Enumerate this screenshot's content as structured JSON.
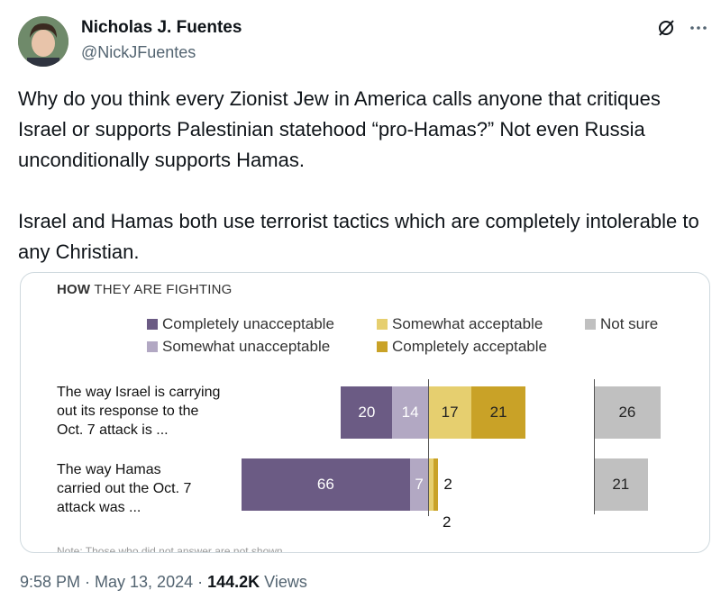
{
  "author": {
    "name": "Nicholas J. Fuentes",
    "handle": "@NickJFuentes"
  },
  "icons": {
    "grok": "slash-circle-icon",
    "more": "more-options-icon"
  },
  "tweet": {
    "paragraph1": "Why do you think every Zionist Jew in America calls anyone that critiques Israel or supports Palestinian statehood “pro-Hamas?” Not even Russia unconditionally supports Hamas.",
    "paragraph2": "Israel and Hamas both use terrorist tactics which are completely intolerable to any Christian."
  },
  "chart_data": {
    "type": "bar",
    "title_bold": "HOW",
    "title_rest": " THEY ARE FIGHTING",
    "legend": [
      {
        "label": "Completely unacceptable",
        "color": "#6b5b84"
      },
      {
        "label": "Somewhat unacceptable",
        "color": "#b2a8c3"
      },
      {
        "label": "Somewhat acceptable",
        "color": "#e6cf6f"
      },
      {
        "label": "Completely acceptable",
        "color": "#c9a227"
      },
      {
        "label": "Not sure",
        "color": "#c0c0c0"
      }
    ],
    "categories": [
      "The way Israel is carrying out its response to the Oct. 7 attack is ...",
      "The way Hamas carried out the Oct. 7 attack was ..."
    ],
    "rows": [
      {
        "label_lines": [
          "The way Israel is carrying",
          "out its response to the",
          "Oct. 7 attack is ..."
        ],
        "completely_unacceptable": 20,
        "somewhat_unacceptable": 14,
        "somewhat_acceptable": 17,
        "completely_acceptable": 21,
        "not_sure": 26,
        "labels": {
          "cu": "20",
          "su": "14",
          "sa": "17",
          "ca": "21",
          "ns": "26"
        }
      },
      {
        "label_lines": [
          "The way Hamas",
          "carried out the Oct. 7",
          "attack was ..."
        ],
        "completely_unacceptable": 66,
        "somewhat_unacceptable": 7,
        "somewhat_acceptable": 2,
        "completely_acceptable": 2,
        "not_sure": 21,
        "labels": {
          "cu": "66",
          "su": "7",
          "sa": "2",
          "ca": "2",
          "ns": "21"
        }
      }
    ],
    "note": "Note: Those who did not answer are not shown."
  },
  "footer": {
    "time": "9:58 PM · May 13, 2024 · ",
    "views_count": "144.2K",
    "views_label": " Views"
  }
}
